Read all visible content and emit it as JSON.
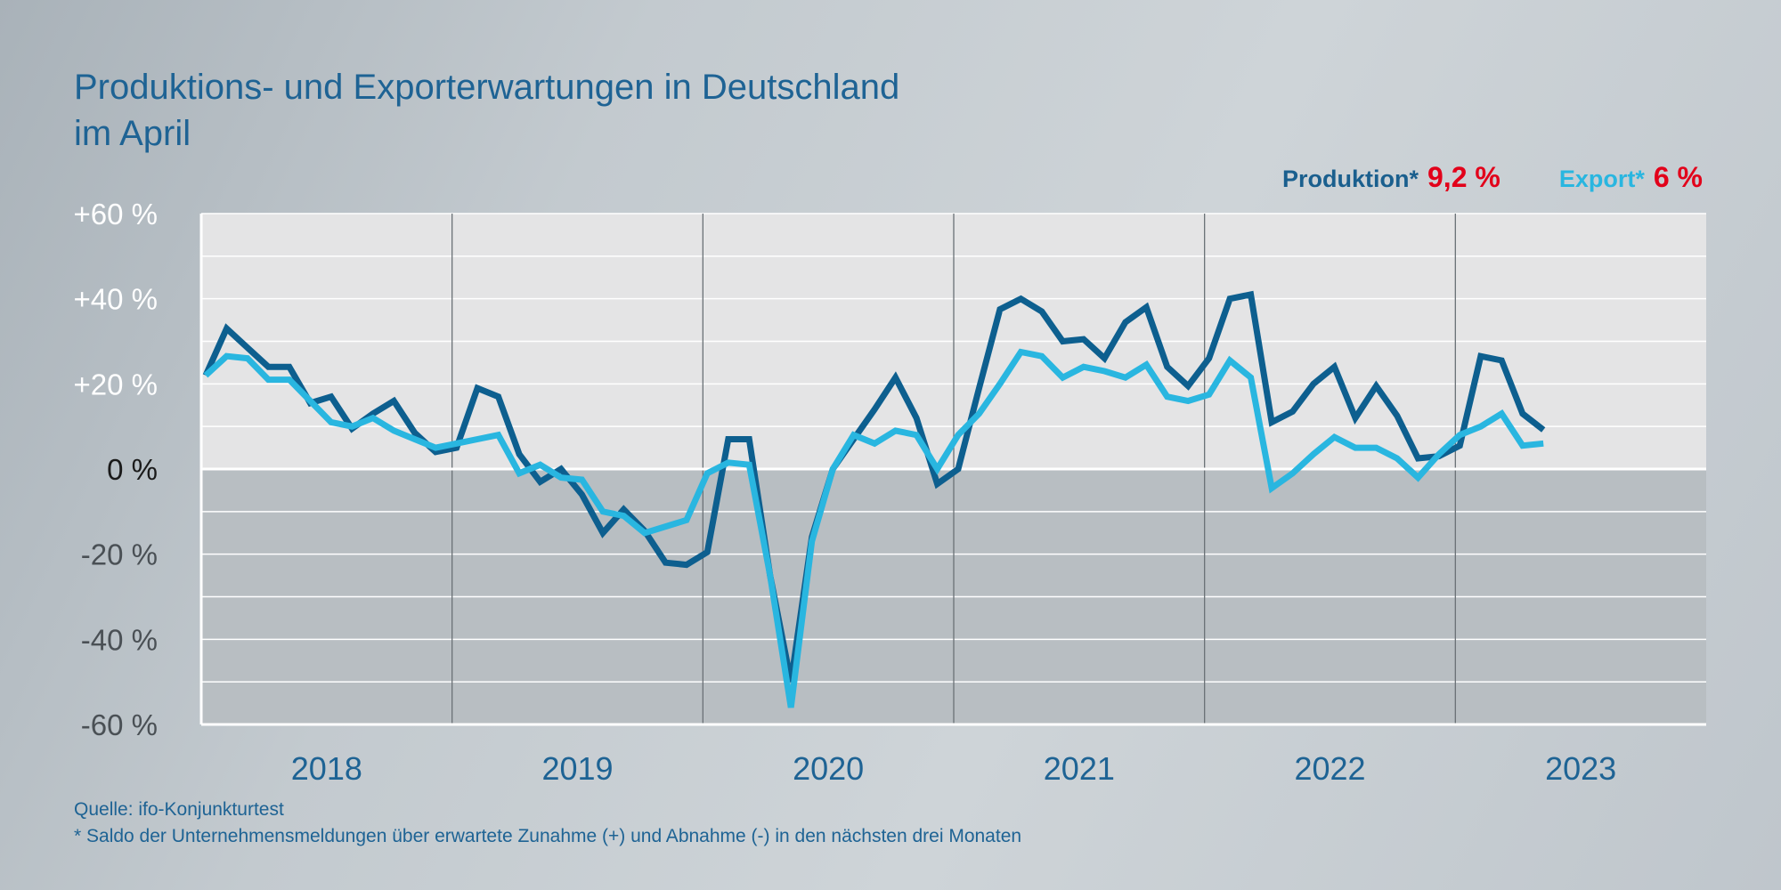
{
  "title": {
    "line1": "Produktions- und Exporterwartungen in Deutschland",
    "line2": "im April"
  },
  "legend": {
    "production": {
      "label": "Produktion*",
      "value": "9,2 %"
    },
    "export": {
      "label": "Export*",
      "value": "6 %"
    }
  },
  "footer": {
    "source": "Quelle: ifo-Konjunkturtest",
    "note": "* Saldo der Unternehmensmeldungen über erwartete Zunahme (+) und Abnahme (-) in den nächsten drei Monaten"
  },
  "colors": {
    "production": "#0d5f8f",
    "export": "#29b6e0",
    "highlight": "#e2001a",
    "plot_positive": "#e4e4e5",
    "plot_negative": "#b8bec2"
  },
  "chart_data": {
    "type": "line",
    "title": "Produktions- und Exporterwartungen in Deutschland im April",
    "xlabel": "",
    "ylabel": "",
    "x_start": "2018-01",
    "x_end": "2023-04",
    "x_year_categories": [
      "2018",
      "2019",
      "2020",
      "2021",
      "2022",
      "2023"
    ],
    "ylim": [
      -60,
      60
    ],
    "y_ticks": [
      60,
      40,
      20,
      0,
      -20,
      -40,
      -60
    ],
    "y_tick_labels": [
      "+60 %",
      "+40 %",
      "+20 %",
      "0 %",
      "-20 %",
      "-40 %",
      "-60 %"
    ],
    "grid": true,
    "series": [
      {
        "name": "Produktion*",
        "values": [
          22,
          33,
          28.5,
          24,
          24,
          15.5,
          17,
          9.5,
          13,
          16,
          8.5,
          4,
          5,
          19,
          17,
          3.5,
          -3,
          0,
          -6,
          -15,
          -9.5,
          -14.5,
          -22,
          -22.5,
          -19.5,
          7,
          7,
          -25,
          -50,
          -16,
          0,
          7,
          14,
          21.5,
          12,
          -3.5,
          0,
          19,
          37.5,
          40,
          37,
          30,
          30.5,
          26,
          34.5,
          38,
          24,
          19.5,
          26,
          40,
          41,
          11,
          13.5,
          20,
          24,
          12,
          19.5,
          12.5,
          2.5,
          3,
          5.5,
          26.5,
          25.5,
          13,
          9.2
        ]
      },
      {
        "name": "Export*",
        "values": [
          22,
          26.5,
          26,
          21,
          21,
          16,
          11,
          10,
          12,
          9,
          7,
          5,
          6,
          7,
          8,
          -1,
          1,
          -2,
          -2.5,
          -10,
          -11,
          -15,
          -13.5,
          -12,
          -1,
          1.5,
          1,
          -25,
          -56,
          -17,
          0,
          8,
          6,
          9,
          8,
          0,
          8,
          13,
          20,
          27.5,
          26.5,
          21.5,
          24,
          23,
          21.5,
          24.5,
          17,
          16,
          17.5,
          25.5,
          21.5,
          -4.5,
          -1,
          3.5,
          7.5,
          5,
          5,
          2.5,
          -2,
          3.5,
          8,
          10,
          13,
          5.5,
          6
        ]
      }
    ]
  }
}
